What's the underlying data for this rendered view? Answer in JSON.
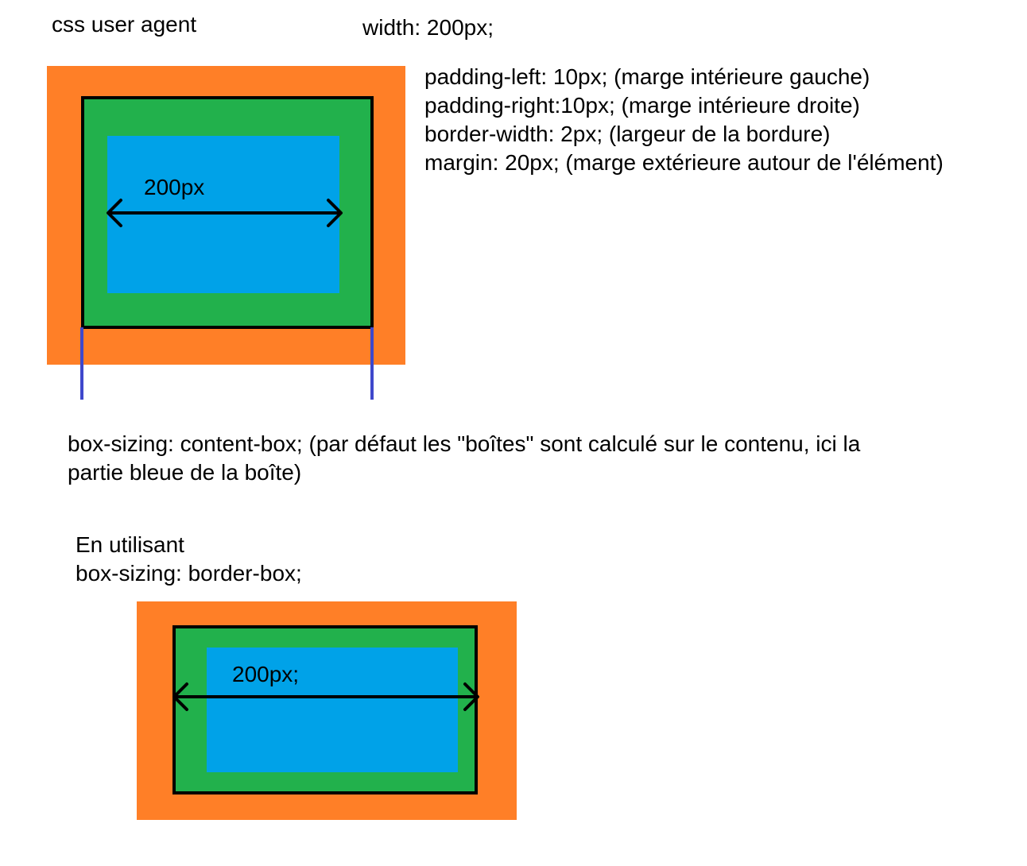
{
  "colors": {
    "margin": "#ff7f27",
    "padding": "#22b14c",
    "border": "#000000",
    "content": "#00a2e8",
    "guide": "#3f48cc"
  },
  "header": {
    "title": "css user agent",
    "width_rule": "width: 200px;"
  },
  "properties": [
    "padding-left: 10px; (marge intérieure gauche)",
    "padding-right:10px; (marge intérieure droite)",
    "border-width: 2px; (largeur de la bordure)",
    "margin: 20px; (marge extérieure autour de l'élément)"
  ],
  "diagram1": {
    "measure_label": "200px"
  },
  "content_box_note": {
    "line1": "box-sizing: content-box; (par défaut les \"boîtes\" sont calculé sur le contenu, ici la",
    "line2": "partie bleue de la boîte)"
  },
  "border_box_note": {
    "line1": "En utilisant",
    "line2": "box-sizing: border-box;"
  },
  "diagram2": {
    "measure_label": "200px;"
  }
}
